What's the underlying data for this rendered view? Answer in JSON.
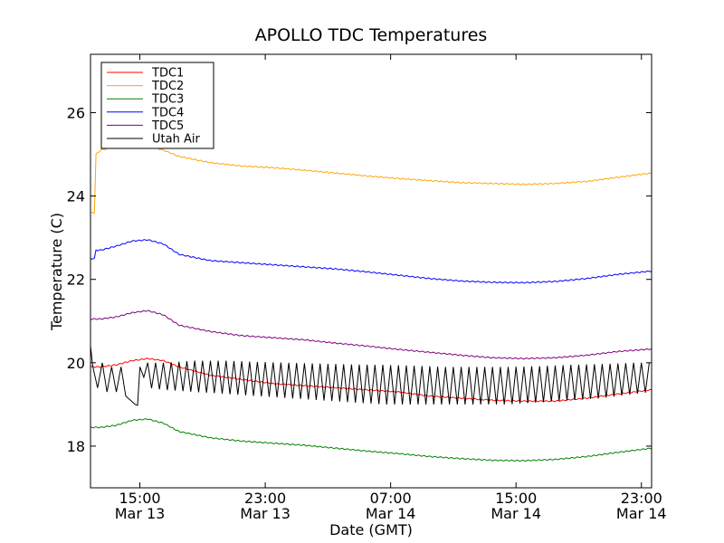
{
  "chart_data": {
    "type": "line",
    "title": "APOLLO TDC Temperatures",
    "xlabel": "Date (GMT)",
    "ylabel": "Temperature (C)",
    "x_unit": "hours since 00:00 Mar 13 (GMT)",
    "xlim": [
      11.85,
      47.65
    ],
    "ylim": [
      17.0,
      27.4
    ],
    "grid": false,
    "legend_position": "top-left",
    "x_ticks": [
      {
        "value": 15,
        "time": "15:00",
        "date": "Mar 13"
      },
      {
        "value": 23,
        "time": "23:00",
        "date": "Mar 13"
      },
      {
        "value": 31,
        "time": "07:00",
        "date": "Mar 14"
      },
      {
        "value": 39,
        "time": "15:00",
        "date": "Mar 14"
      },
      {
        "value": 47,
        "time": "23:00",
        "date": "Mar 14"
      }
    ],
    "y_ticks": [
      18,
      20,
      22,
      24,
      26
    ],
    "series": [
      {
        "name": "TDC1",
        "color": "#ff0000",
        "x": [
          11.85,
          12.5,
          13.5,
          14.5,
          15.5,
          16.5,
          17.5,
          19.5,
          21.5,
          23.5,
          25.5,
          27.5,
          29.5,
          31.5,
          33.5,
          35.5,
          37.5,
          39.5,
          41.5,
          43.5,
          45.5,
          47.65
        ],
        "values": [
          19.9,
          19.9,
          19.95,
          20.05,
          20.1,
          20.05,
          19.9,
          19.7,
          19.6,
          19.5,
          19.45,
          19.4,
          19.35,
          19.3,
          19.2,
          19.15,
          19.1,
          19.08,
          19.08,
          19.15,
          19.25,
          19.35
        ]
      },
      {
        "name": "TDC2",
        "color": "#ffa500",
        "x": [
          11.85,
          12.1,
          12.2,
          12.5,
          13.5,
          14.5,
          15.5,
          16.5,
          17.5,
          19.5,
          21.5,
          23.5,
          25.5,
          27.5,
          29.5,
          31.5,
          33.5,
          35.5,
          37.5,
          39.5,
          41.5,
          43.5,
          45.5,
          47.65
        ],
        "values": [
          23.6,
          23.6,
          25.0,
          25.1,
          25.2,
          25.25,
          25.2,
          25.1,
          24.95,
          24.8,
          24.72,
          24.68,
          24.62,
          24.55,
          24.48,
          24.42,
          24.37,
          24.32,
          24.3,
          24.28,
          24.3,
          24.35,
          24.45,
          24.55
        ]
      },
      {
        "name": "TDC3",
        "color": "#008000",
        "x": [
          11.85,
          12.5,
          13.5,
          14.5,
          15.5,
          16.5,
          17.5,
          19.5,
          21.5,
          23.5,
          25.5,
          27.5,
          29.5,
          31.5,
          33.5,
          35.5,
          37.5,
          39.5,
          41.5,
          43.5,
          45.5,
          47.65
        ],
        "values": [
          18.45,
          18.45,
          18.5,
          18.62,
          18.65,
          18.55,
          18.35,
          18.2,
          18.12,
          18.07,
          18.02,
          17.95,
          17.88,
          17.82,
          17.75,
          17.7,
          17.66,
          17.65,
          17.68,
          17.75,
          17.85,
          17.95
        ]
      },
      {
        "name": "TDC4",
        "color": "#0000ff",
        "x": [
          11.85,
          12.1,
          12.2,
          12.5,
          13.5,
          14.5,
          15.5,
          16.5,
          17.5,
          19.5,
          21.5,
          23.5,
          25.5,
          27.5,
          29.5,
          31.5,
          33.5,
          35.5,
          37.5,
          39.5,
          41.5,
          43.5,
          45.5,
          47.65
        ],
        "values": [
          22.5,
          22.5,
          22.7,
          22.7,
          22.8,
          22.92,
          22.95,
          22.85,
          22.6,
          22.45,
          22.4,
          22.35,
          22.3,
          22.25,
          22.18,
          22.1,
          22.02,
          21.96,
          21.93,
          21.92,
          21.95,
          22.02,
          22.12,
          22.2
        ]
      },
      {
        "name": "TDC5",
        "color": "#800080",
        "x": [
          11.85,
          12.5,
          13.5,
          14.5,
          15.5,
          16.5,
          17.5,
          19.5,
          21.5,
          23.5,
          25.5,
          27.5,
          29.5,
          31.5,
          33.5,
          35.5,
          37.5,
          39.5,
          41.5,
          43.5,
          45.5,
          47.65
        ],
        "values": [
          21.05,
          21.05,
          21.1,
          21.2,
          21.25,
          21.15,
          20.9,
          20.75,
          20.65,
          20.6,
          20.55,
          20.47,
          20.4,
          20.32,
          20.25,
          20.18,
          20.12,
          20.1,
          20.12,
          20.18,
          20.27,
          20.33
        ]
      },
      {
        "name": "Utah Air",
        "color": "#000000",
        "x": [
          11.85,
          12.0,
          12.3,
          12.6,
          12.9,
          13.2,
          13.5,
          13.8,
          14.1,
          14.4,
          14.7,
          14.85,
          15.0,
          15.5,
          16.5,
          18.5,
          20.5,
          22.5,
          24.5,
          26.5,
          28.5,
          30.5,
          32.5,
          34.5,
          36.5,
          38.5,
          40.5,
          42.5,
          44.5,
          46.5,
          47.65
        ],
        "values": [
          20.4,
          19.9,
          19.4,
          20.0,
          19.3,
          19.9,
          19.3,
          19.9,
          19.2,
          19.1,
          19.0,
          18.98,
          19.9,
          20.0,
          20.0,
          20.05,
          20.05,
          20.02,
          20.0,
          19.98,
          19.96,
          19.95,
          19.93,
          19.9,
          19.9,
          19.9,
          19.92,
          19.95,
          19.97,
          20.0,
          20.0
        ],
        "lower": [
          11.85,
          12.0,
          12.3,
          12.6,
          12.9,
          13.2,
          13.5,
          13.8,
          14.1,
          14.4,
          14.7,
          14.85,
          15.0,
          15.5,
          16.5,
          18.5,
          20.5,
          22.5,
          24.5,
          26.5,
          28.5,
          30.5,
          32.5,
          34.5,
          36.5,
          38.5,
          40.5,
          42.5,
          44.5,
          46.5,
          47.65
        ],
        "lower_values": [
          20.4,
          19.9,
          19.4,
          20.0,
          19.3,
          19.9,
          19.3,
          19.9,
          19.2,
          19.1,
          19.0,
          18.98,
          19.9,
          19.4,
          19.35,
          19.3,
          19.25,
          19.2,
          19.15,
          19.1,
          19.05,
          19.0,
          19.0,
          19.0,
          19.0,
          19.0,
          19.05,
          19.1,
          19.15,
          19.25,
          19.3
        ]
      }
    ]
  }
}
